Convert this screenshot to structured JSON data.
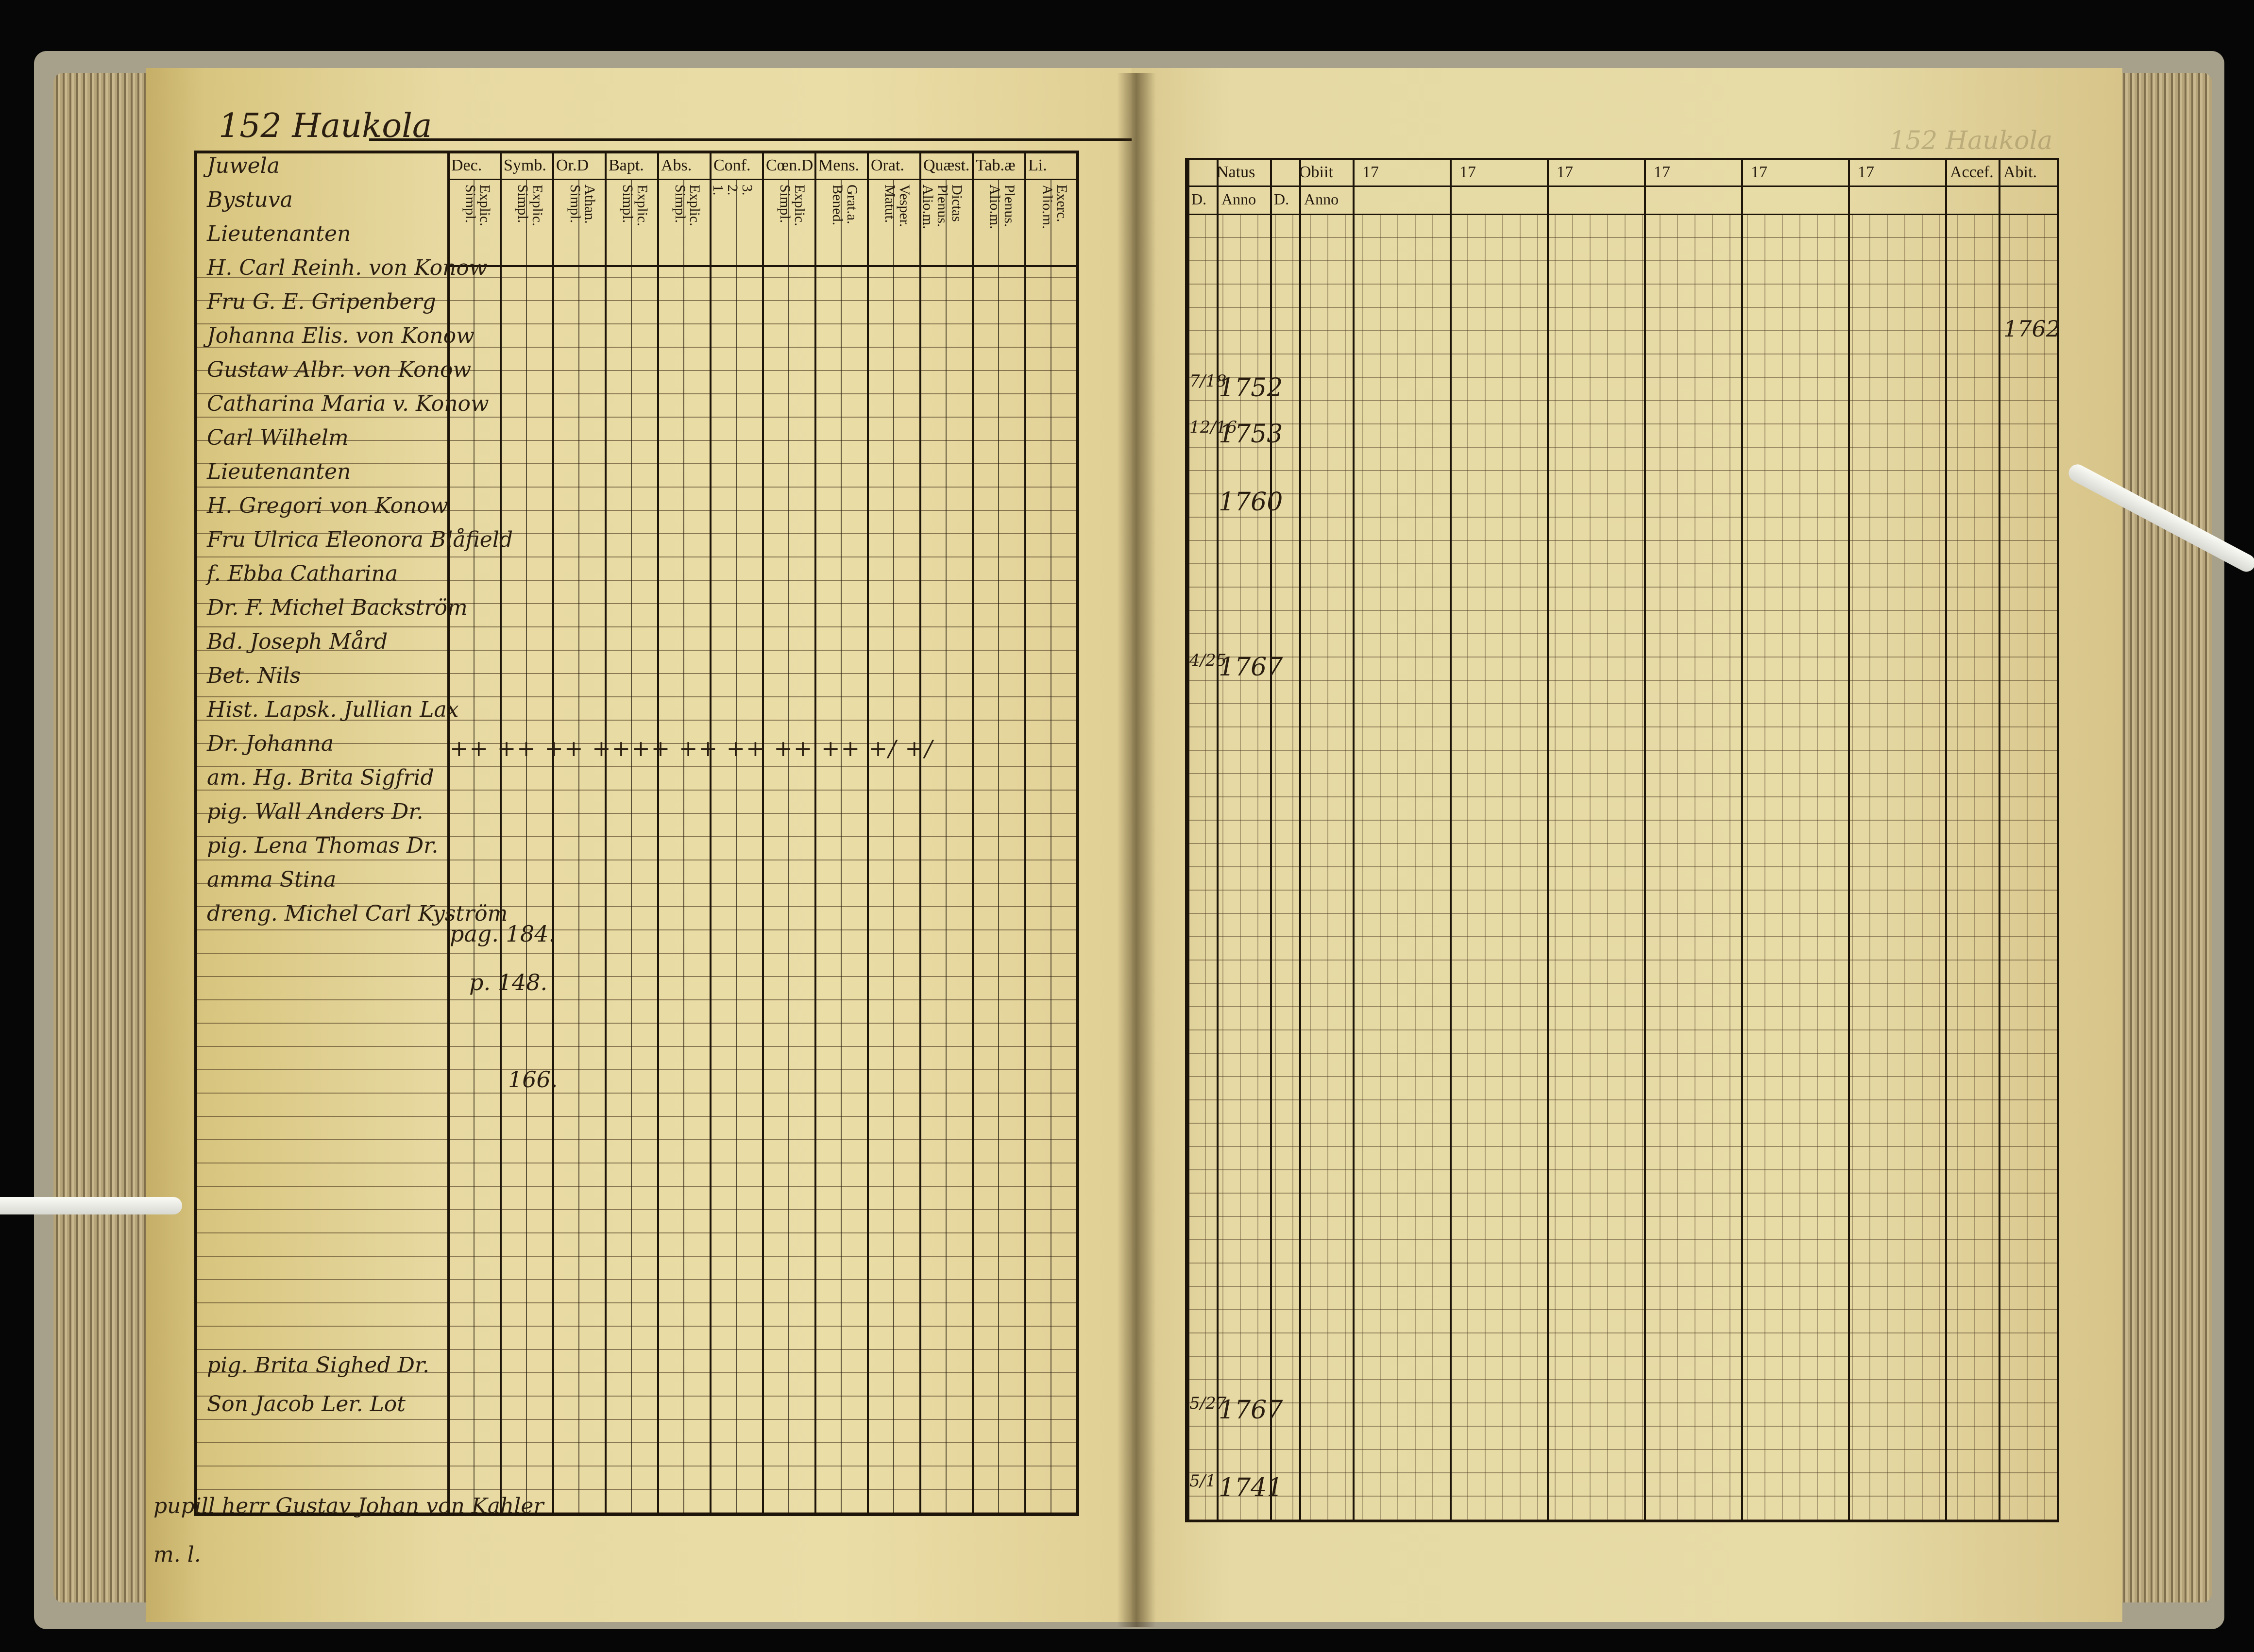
{
  "left_page": {
    "header": "152 Haukola",
    "headers": [
      {
        "top": "Dec.",
        "sub": "Explic.\nSimpl."
      },
      {
        "top": "Symb.",
        "sub": "Explic.\nSimpl."
      },
      {
        "top": "Or.D",
        "sub": "Athan.\nSimpl."
      },
      {
        "top": "Bapt.",
        "sub": "Explic.\nSimpl."
      },
      {
        "top": "Abs.",
        "sub": "Explic.\nSimpl."
      },
      {
        "top": "Conf.",
        "sub": "3.\n2.\n1."
      },
      {
        "top": "Cœn.D",
        "sub": "Explic.\nSimpl."
      },
      {
        "top": "Mens.",
        "sub": "Grat.a.\nBened."
      },
      {
        "top": "Orat.",
        "sub": "Vesper.\nMatut."
      },
      {
        "top": "Quæst.",
        "sub": "Dictas\nPlenus.\nAlio.m."
      },
      {
        "top": "Tab.æ",
        "sub": "Plenus.\nAlio.m."
      },
      {
        "top": "Li.",
        "sub": "Exerc.\nAlio.m."
      }
    ],
    "names": [
      "Juwela",
      "Bystuva",
      "Lieutenanten",
      "H. Carl Reinh. von Konow",
      "Fru G. E. Gripenberg",
      "Johanna Elis. von Konow",
      "Gustaw Albr. von Konow",
      "Catharina Maria v. Konow",
      "Carl Wilhelm",
      "Lieutenanten",
      "H. Gregori von Konow",
      "Fru Ulrica Eleonora Blåfield",
      "f. Ebba Catharina",
      "Dr. F. Michel Backström",
      "Bd. Joseph Mård",
      "Bet. Nils",
      "Hist. Lapsk. Jullian Lax",
      "Dr. Johanna",
      "am. Hg. Brita Sigfrid",
      "pig. Wall Anders Dr.",
      "pig. Lena Thomas Dr.",
      "amma Stina",
      "dreng. Michel Carl Kyström",
      "",
      "",
      "",
      "",
      "",
      "",
      "",
      "",
      "",
      "",
      "",
      "pig. Brita Sighed Dr.",
      "Son Jacob Ler. Lot",
      "pupill herr Gustav Johan von Kahler",
      "m. l."
    ],
    "marks_row": "++   ++   ++ ++++   ++ ++ ++ ++ +/   +/",
    "page_refs": [
      "pag. 184.",
      "p. 148.",
      "166."
    ]
  },
  "right_page": {
    "faint_header": "152 Haukola",
    "col_headers": [
      "Natus",
      "Obiit",
      "17",
      "17",
      "17",
      "17",
      "17",
      "17",
      "Accef.",
      "Abit."
    ],
    "sub_headers": [
      "D.",
      "Anno",
      "D.",
      "Anno"
    ],
    "entries": [
      {
        "day": "7/18",
        "year": "1752"
      },
      {
        "day": "12/16",
        "year": "1753"
      },
      {
        "day": "",
        "year": "1760"
      },
      {
        "day": "4/25",
        "year": "1767"
      },
      {
        "day": "5/27",
        "year": "1767"
      },
      {
        "day": "5/1",
        "year": "1741"
      }
    ],
    "abit": "1762"
  },
  "colors": {
    "paper": "#e7d9a1",
    "ink": "#2a1e10",
    "background": "#060606"
  }
}
